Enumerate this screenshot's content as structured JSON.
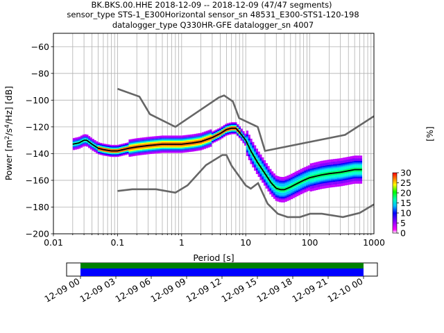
{
  "title_lines": [
    "BK.BKS.00.HHE   2018-12-09 -- 2018-12-09  (47/47 segments)",
    "sensor_type STS-1_E300Horizontal sensor_sn 48531_E300-STS1-120-198",
    "datalogger_type Q330HR-GFE datalogger_sn 4007"
  ],
  "chart_data": [
    {
      "type": "heatmap",
      "title": "BK.BKS.00.HHE   2018-12-09 -- 2018-12-09  (47/47 segments)",
      "xlabel": "Period [s]",
      "ylabel": "Power [m²/s⁴/Hz] [dB]",
      "xscale": "log",
      "xlim": [
        0.01,
        1000
      ],
      "ylim": [
        -200,
        -50
      ],
      "x_tick_labels": [
        "0.01",
        "0.1",
        "1",
        "10",
        "100",
        "1000"
      ],
      "x_tick_values": [
        0.01,
        0.1,
        1,
        10,
        100,
        1000
      ],
      "y_tick_values": [
        -60,
        -80,
        -100,
        -120,
        -140,
        -160,
        -180,
        -200
      ],
      "grid": true,
      "noise_models": {
        "color": "#666666",
        "high": {
          "name": "NHNM",
          "x": [
            0.1,
            0.22,
            0.32,
            0.8,
            3.8,
            4.6,
            6.3,
            7.9,
            15.4,
            20,
            354.8,
            1000
          ],
          "y": [
            -91.5,
            -97.4,
            -110.5,
            -120,
            -98,
            -96.5,
            -101,
            -113.5,
            -120,
            -138,
            -126,
            -112
          ]
        },
        "low": {
          "name": "NLNM",
          "x": [
            0.1,
            0.17,
            0.4,
            0.8,
            1.24,
            2.4,
            4.3,
            5,
            6,
            10,
            12,
            15.6,
            21.9,
            31.6,
            45,
            70,
            101,
            154,
            328,
            600,
            1000
          ],
          "y": [
            -168,
            -166.7,
            -166.7,
            -169.2,
            -163.7,
            -148.6,
            -141.1,
            -141.1,
            -149,
            -163.8,
            -166.2,
            -162.1,
            -177.5,
            -185,
            -187.5,
            -187.5,
            -185,
            -185,
            -187.5,
            -184.4,
            -178
          ]
        }
      },
      "mode": {
        "color": "#000000",
        "x": [
          0.02,
          0.025,
          0.03,
          0.033,
          0.04,
          0.05,
          0.06,
          0.08,
          0.1,
          0.15,
          0.2,
          0.3,
          0.5,
          0.8,
          1,
          1.5,
          2,
          3,
          4,
          5,
          6,
          7,
          8,
          10,
          12,
          15,
          20,
          25,
          30,
          35,
          40,
          50,
          60,
          80,
          100,
          150,
          200,
          300,
          500,
          650
        ],
        "y": [
          -133,
          -132,
          -130,
          -130,
          -133,
          -136,
          -137,
          -138,
          -138,
          -136,
          -135,
          -134,
          -133,
          -133,
          -133,
          -132,
          -131,
          -128,
          -125,
          -122,
          -121,
          -121,
          -124,
          -130,
          -138,
          -146,
          -155,
          -162,
          -166,
          -167,
          -167,
          -165,
          -163,
          -160,
          -158,
          -156,
          -155,
          -154,
          -152,
          -152
        ]
      },
      "colorbar": {
        "label": "[%]",
        "min": 0,
        "max": 30,
        "ticks": [
          0,
          5,
          10,
          15,
          20,
          25,
          30
        ]
      }
    },
    {
      "type": "timeline",
      "x_tick_labels": [
        "12-09 00",
        "12-09 03",
        "12-09 06",
        "12-09 09",
        "12-09 12",
        "12-09 15",
        "12-09 18",
        "12-09 21",
        "12-10 00"
      ],
      "xlim": [
        "12-08 22:30",
        "12-10 01:30"
      ],
      "coverage": {
        "start": "12-09 00",
        "end": "12-10 00"
      },
      "series": [
        {
          "name": "",
          "color": "#008000"
        },
        {
          "name": "",
          "color": "#0000ff"
        }
      ]
    }
  ]
}
